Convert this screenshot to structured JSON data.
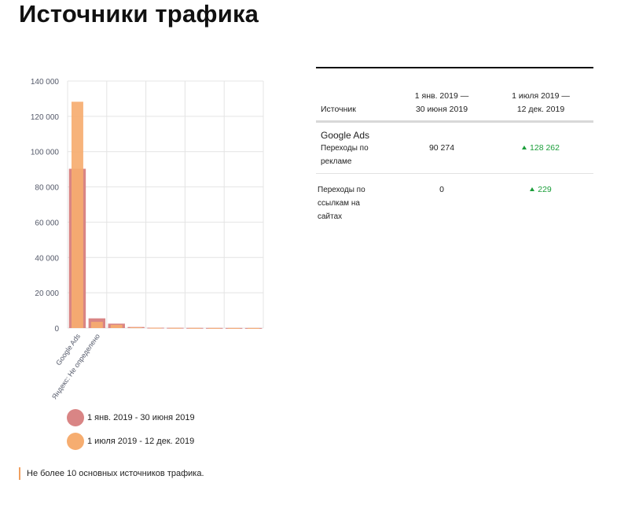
{
  "page": {
    "title": "Источники трафика",
    "footnote": "Не более 10 основных источников трафика."
  },
  "colors": {
    "series1": "#d98585",
    "series2": "#f6ad70",
    "grid": "#e4e4e4",
    "axis_text": "#555a6a",
    "positive": "#1b9e3a",
    "footnote_accent": "#f0a060"
  },
  "chart_data": {
    "type": "bar",
    "categories": [
      "Google Ads",
      "Яндекс: Не определено",
      "",
      "",
      "",
      "",
      "",
      "",
      "",
      ""
    ],
    "series": [
      {
        "name": "1 янв. 2019 - 30 июня 2019",
        "values": [
          90274,
          5500,
          2500,
          600,
          200,
          150,
          100,
          80,
          60,
          50
        ]
      },
      {
        "name": "1 июля 2019 - 12 дек. 2019",
        "values": [
          128262,
          3500,
          1800,
          400,
          150,
          100,
          80,
          60,
          50,
          40
        ]
      }
    ],
    "yticks": [
      "140 000",
      "120 000",
      "100 000",
      "80 000",
      "60 000",
      "40 000",
      "20 000",
      "0"
    ],
    "ylim": [
      0,
      140000
    ],
    "grid": true,
    "legend_position": "bottom"
  },
  "table": {
    "headers": {
      "source": "Источник",
      "period1": [
        "1 янв. 2019 —",
        "30 июня 2019"
      ],
      "period2": [
        "1 июля 2019 —",
        "12 дек. 2019"
      ]
    },
    "rows": [
      {
        "group": "Google Ads",
        "label": [
          "Переходы по",
          "рекламе"
        ],
        "value1": "90 274",
        "value2": "128 262"
      },
      {
        "group": "",
        "label": [
          "Переходы по",
          "ссылкам на сайтах"
        ],
        "value1": "0",
        "value2": "229"
      }
    ]
  }
}
